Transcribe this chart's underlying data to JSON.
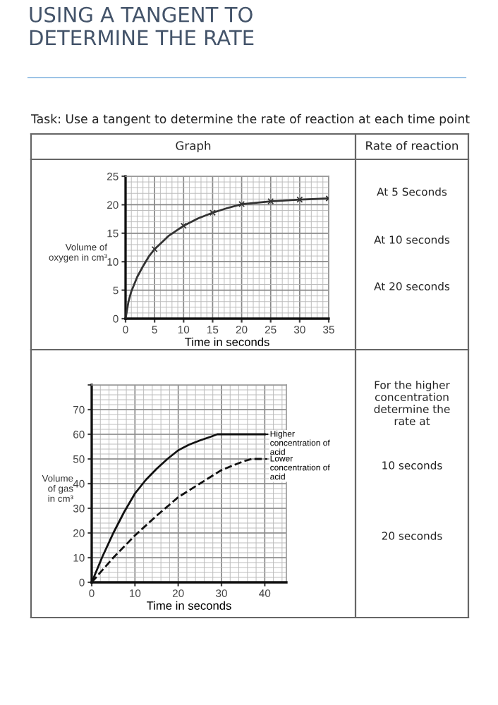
{
  "chart_data": [
    {
      "type": "other",
      "title": "USING A TANGENT TO DETERMINE THE RATE",
      "annotations": [
        "Task: Use a tangent to determine the rate of reaction at each time point",
        "Graph",
        "Rate of reaction"
      ]
    },
    {
      "type": "line",
      "xlabel": "Time in seconds",
      "ylabel": "Volume of oxygen in cm³",
      "xlim": [
        0,
        35
      ],
      "ylim": [
        0,
        25
      ],
      "xticks": [
        0,
        5,
        10,
        15,
        20,
        25,
        30,
        35
      ],
      "yticks": [
        0,
        5,
        10,
        15,
        20,
        25
      ],
      "grid": true,
      "legend": false,
      "series": [
        {
          "type": "line",
          "color": "#333333",
          "marker": "none",
          "line_style": "solid",
          "x": [
            0,
            0.5,
            1,
            2,
            3,
            4,
            5,
            7.5,
            10,
            12.5,
            15,
            17.5,
            20,
            25,
            30,
            35
          ],
          "values": [
            0,
            3,
            4.8,
            7.3,
            9.2,
            10.9,
            12.2,
            14.6,
            16.3,
            17.6,
            18.6,
            19.4,
            20.1,
            20.6,
            20.9,
            21.1
          ]
        },
        {
          "type": "scatter",
          "color": "#333333",
          "marker": "cross",
          "x": [
            5,
            10,
            15,
            20,
            25,
            30,
            35
          ],
          "values": [
            12.2,
            16.3,
            18.6,
            20.1,
            20.6,
            20.9,
            21.1
          ]
        }
      ],
      "annotations": [
        "At 5 Seconds",
        "At 10 seconds",
        "At 20 seconds"
      ]
    },
    {
      "type": "line",
      "xlabel": "Time in seconds",
      "ylabel": "Volume of gas in cm³",
      "xlim": [
        0,
        45
      ],
      "ylim": [
        0,
        80
      ],
      "xticks": [
        0,
        10,
        20,
        30,
        40
      ],
      "yticks": [
        0,
        10,
        20,
        30,
        40,
        50,
        60,
        70,
        {
          "value": 80,
          "label": null
        }
      ],
      "grid": true,
      "legend": "right",
      "series": [
        {
          "name": "Higher concentration of acid",
          "color": "#111111",
          "line_style": "solid",
          "x": [
            0,
            2.5,
            5,
            7.5,
            10,
            12.5,
            15,
            17.5,
            20,
            22.5,
            25,
            27.5,
            29,
            30,
            35,
            40
          ],
          "values": [
            0,
            10.5,
            20,
            28.5,
            36,
            41.5,
            46,
            50,
            53.5,
            55.8,
            57.5,
            59,
            60,
            60,
            60,
            60
          ]
        },
        {
          "name": "Lower concentration of acid",
          "color": "#111111",
          "line_style": "dashed",
          "x": [
            0,
            5,
            10,
            15,
            20,
            25,
            30,
            35,
            37,
            40
          ],
          "values": [
            0,
            10,
            19,
            27,
            34.5,
            40,
            45.5,
            49,
            50,
            50
          ]
        }
      ],
      "annotations": [
        "For the higher concentration determine the rate at",
        "10 seconds",
        "20 seconds"
      ]
    }
  ]
}
